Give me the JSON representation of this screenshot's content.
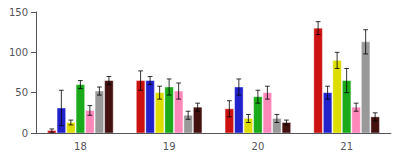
{
  "chart_data": {
    "type": "bar",
    "categories": [
      "18",
      "19",
      "20",
      "21"
    ],
    "series": [
      {
        "color": "#CC1111",
        "values": [
          3,
          65,
          30,
          130
        ],
        "errors": [
          2,
          12,
          10,
          8
        ]
      },
      {
        "color": "#2222CC",
        "values": [
          31,
          65,
          57,
          50
        ],
        "errors": [
          22,
          5,
          10,
          8
        ]
      },
      {
        "color": "#DDDD00",
        "values": [
          13,
          50,
          18,
          90
        ],
        "errors": [
          3,
          8,
          5,
          10
        ]
      },
      {
        "color": "#1AAA1A",
        "values": [
          60,
          57,
          45,
          65
        ],
        "errors": [
          5,
          10,
          8,
          15
        ]
      },
      {
        "color": "#FF88BB",
        "values": [
          28,
          52,
          50,
          32
        ],
        "errors": [
          6,
          10,
          8,
          5
        ]
      },
      {
        "color": "#999999",
        "values": [
          52,
          22,
          18,
          113
        ],
        "errors": [
          5,
          5,
          5,
          15
        ]
      },
      {
        "color": "#441111",
        "values": [
          65,
          32,
          13,
          20
        ],
        "errors": [
          5,
          5,
          3,
          5
        ]
      }
    ],
    "ylim": [
      0,
      150
    ],
    "yticks": [
      0,
      50,
      100,
      150
    ],
    "grid": false
  }
}
